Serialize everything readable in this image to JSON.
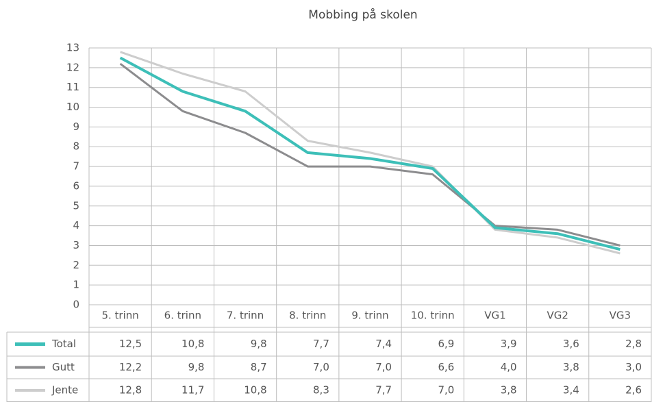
{
  "chart_data": {
    "type": "line",
    "title": "Mobbing på skolen",
    "categories": [
      "5. trinn",
      "6. trinn",
      "7. trinn",
      "8. trinn",
      "9. trinn",
      "10. trinn",
      "VG1",
      "VG2",
      "VG3"
    ],
    "series": [
      {
        "name": "Total",
        "color": "#3dbfb8",
        "values": [
          12.5,
          10.8,
          9.8,
          7.7,
          7.4,
          6.9,
          3.9,
          3.6,
          2.8
        ],
        "value_labels": [
          "12,5",
          "10,8",
          "9,8",
          "7,7",
          "7,4",
          "6,9",
          "3,9",
          "3,6",
          "2,8"
        ]
      },
      {
        "name": "Gutt",
        "color": "#8c8c8e",
        "values": [
          12.2,
          9.8,
          8.7,
          7.0,
          7.0,
          6.6,
          4.0,
          3.8,
          3.0
        ],
        "value_labels": [
          "12,2",
          "9,8",
          "8,7",
          "7,0",
          "7,0",
          "6,6",
          "4,0",
          "3,8",
          "3,0"
        ]
      },
      {
        "name": "Jente",
        "color": "#cdcdcd",
        "values": [
          12.8,
          11.7,
          10.8,
          8.3,
          7.7,
          7.0,
          3.8,
          3.4,
          2.6
        ],
        "value_labels": [
          "12,8",
          "11,7",
          "10,8",
          "8,3",
          "7,7",
          "7,0",
          "3,8",
          "3,4",
          "2,6"
        ]
      }
    ],
    "ylim": [
      0,
      13
    ],
    "yticks": [
      0,
      1,
      2,
      3,
      4,
      5,
      6,
      7,
      8,
      9,
      10,
      11,
      12,
      13
    ],
    "grid": true
  }
}
